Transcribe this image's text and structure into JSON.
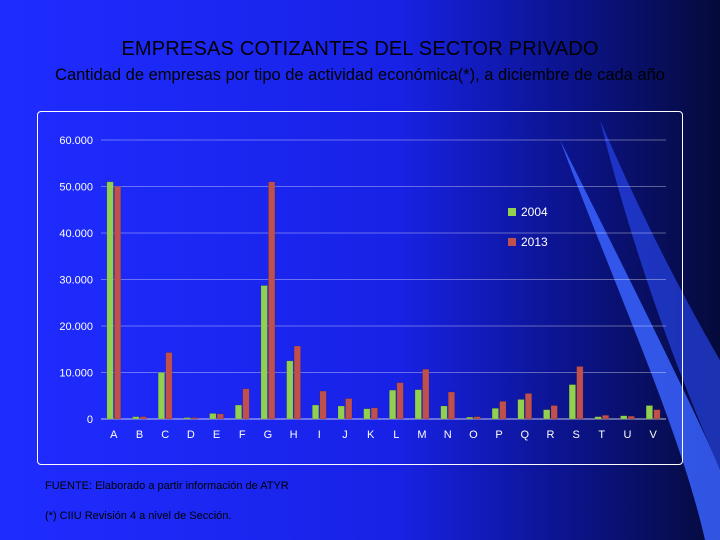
{
  "slide": {
    "title": "EMPRESAS COTIZANTES DEL SECTOR PRIVADO",
    "subtitle": "Cantidad de empresas por tipo de actividad económica(*), a diciembre de cada año",
    "source_note": "FUENTE: Elaborado a partir información de ATYR",
    "footnote": "(*) CIIU Revisión 4 a nivel de  Sección."
  },
  "colors": {
    "series_2004": "#92d050",
    "series_2013": "#c0504d",
    "axis_text": "#ffffff"
  },
  "chart_data": {
    "type": "bar",
    "title": "",
    "xlabel": "",
    "ylabel": "",
    "ylim": [
      0,
      60000
    ],
    "y_ticks": [
      "0",
      "10.000",
      "20.000",
      "30.000",
      "40.000",
      "50.000",
      "60.000"
    ],
    "y_tick_values": [
      0,
      10000,
      20000,
      30000,
      40000,
      50000,
      60000
    ],
    "grid": true,
    "legend_position": "right",
    "categories": [
      "A",
      "B",
      "C",
      "D",
      "E",
      "F",
      "G",
      "H",
      "I",
      "J",
      "K",
      "L",
      "M",
      "N",
      "O",
      "P",
      "Q",
      "R",
      "S",
      "T",
      "U",
      "V"
    ],
    "series": [
      {
        "name": "2004",
        "values": [
          51000,
          500,
          10000,
          300,
          1200,
          3000,
          28700,
          12500,
          3000,
          2800,
          2200,
          6200,
          6300,
          2800,
          400,
          2300,
          4200,
          2000,
          7400,
          500,
          700,
          2900
        ]
      },
      {
        "name": "2013",
        "values": [
          50000,
          500,
          14300,
          300,
          1100,
          6500,
          51000,
          15700,
          6000,
          4400,
          2400,
          7800,
          10700,
          5800,
          500,
          3800,
          5500,
          2900,
          11300,
          800,
          600,
          2000
        ]
      }
    ]
  }
}
